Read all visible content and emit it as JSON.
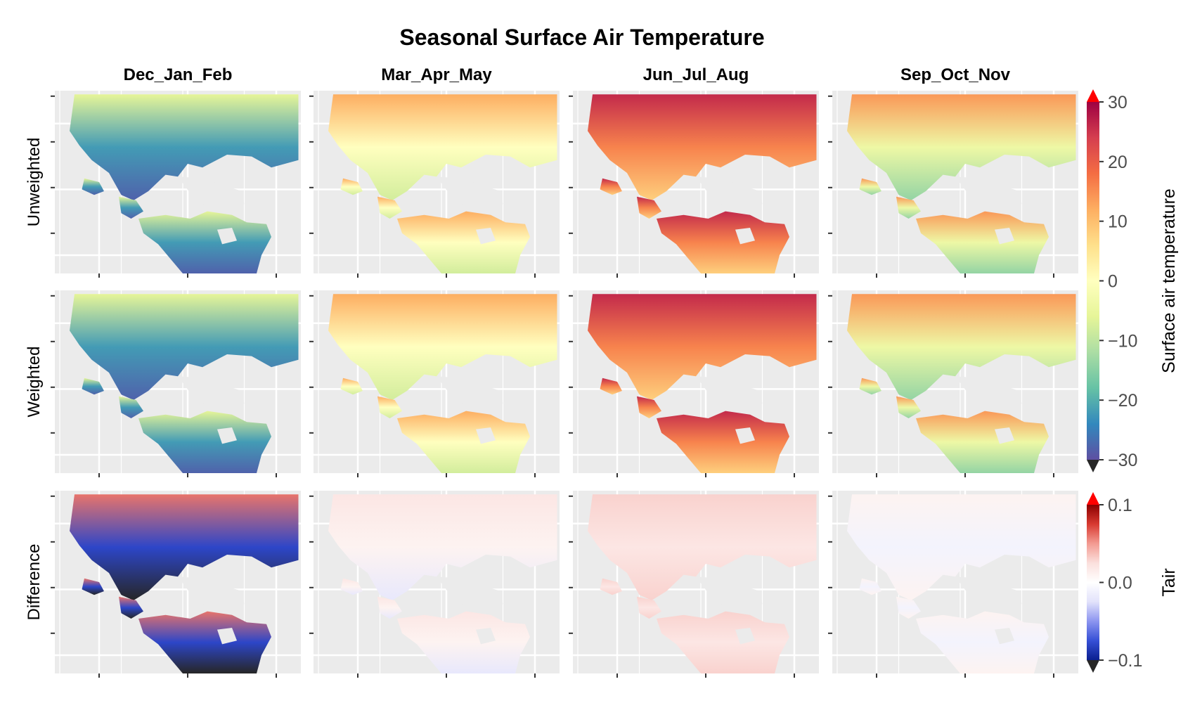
{
  "chart_data": {
    "type": "heatmap",
    "title": "Seasonal Surface Air Temperature",
    "columns": [
      "Dec_Jan_Feb",
      "Mar_Apr_May",
      "Jun_Jul_Aug",
      "Sep_Oct_Nov"
    ],
    "rows": [
      "Unweighted",
      "Weighted",
      "Difference"
    ],
    "grid": true,
    "colorbars": [
      {
        "name": "temperature",
        "label": "Surface air temperature",
        "rows": [
          "Unweighted",
          "Weighted"
        ],
        "range": [
          -30,
          30
        ],
        "ticks": [
          "30",
          "20",
          "10",
          "0",
          "−10",
          "−20",
          "−30"
        ],
        "tick_values": [
          30,
          20,
          10,
          0,
          -10,
          -20,
          -30
        ],
        "colormap": [
          "#5e4fa2",
          "#3288bd",
          "#66c2a5",
          "#abdda4",
          "#e6f598",
          "#ffffbf",
          "#fee08b",
          "#fdae61",
          "#f46d43",
          "#d53e4f",
          "#9e0142"
        ],
        "high_extend_color": "#ff0000",
        "low_extend_color": "#262626"
      },
      {
        "name": "difference",
        "label": "Tair",
        "rows": [
          "Difference"
        ],
        "range": [
          -0.1,
          0.1
        ],
        "ticks": [
          "0.1",
          "0.0",
          "−0.1"
        ],
        "tick_values": [
          0.1,
          0.0,
          -0.1
        ],
        "colormap": [
          "#0a1f8f",
          "#3650d6",
          "#8c95f0",
          "#e2e2fb",
          "#ffffff",
          "#fbe0dd",
          "#f39b92",
          "#d83a31",
          "#8b0000"
        ],
        "high_extend_color": "#ff0000",
        "low_extend_color": "#262626"
      }
    ],
    "panels": [
      {
        "row": "Unweighted",
        "column": "Dec_Jan_Feb",
        "north": -6,
        "south": -28,
        "mid": -22
      },
      {
        "row": "Unweighted",
        "column": "Mar_Apr_May",
        "north": 12,
        "south": -8,
        "mid": 0
      },
      {
        "row": "Unweighted",
        "column": "Jun_Jul_Aug",
        "north": 26,
        "south": 8,
        "mid": 16
      },
      {
        "row": "Unweighted",
        "column": "Sep_Oct_Nov",
        "north": 14,
        "south": -14,
        "mid": -4
      },
      {
        "row": "Weighted",
        "column": "Dec_Jan_Feb",
        "north": -6,
        "south": -28,
        "mid": -22
      },
      {
        "row": "Weighted",
        "column": "Mar_Apr_May",
        "north": 12,
        "south": -8,
        "mid": 0
      },
      {
        "row": "Weighted",
        "column": "Jun_Jul_Aug",
        "north": 26,
        "south": 8,
        "mid": 16
      },
      {
        "row": "Weighted",
        "column": "Sep_Oct_Nov",
        "north": 14,
        "south": -14,
        "mid": -4
      },
      {
        "row": "Difference",
        "column": "Dec_Jan_Feb",
        "north": 0.06,
        "south": -0.12,
        "mid": -0.08
      },
      {
        "row": "Difference",
        "column": "Mar_Apr_May",
        "north": 0.02,
        "south": -0.02,
        "mid": 0.01
      },
      {
        "row": "Difference",
        "column": "Jun_Jul_Aug",
        "north": 0.03,
        "south": 0.03,
        "mid": 0.02
      },
      {
        "row": "Difference",
        "column": "Sep_Oct_Nov",
        "north": 0.01,
        "south": 0.01,
        "mid": -0.01
      }
    ]
  }
}
